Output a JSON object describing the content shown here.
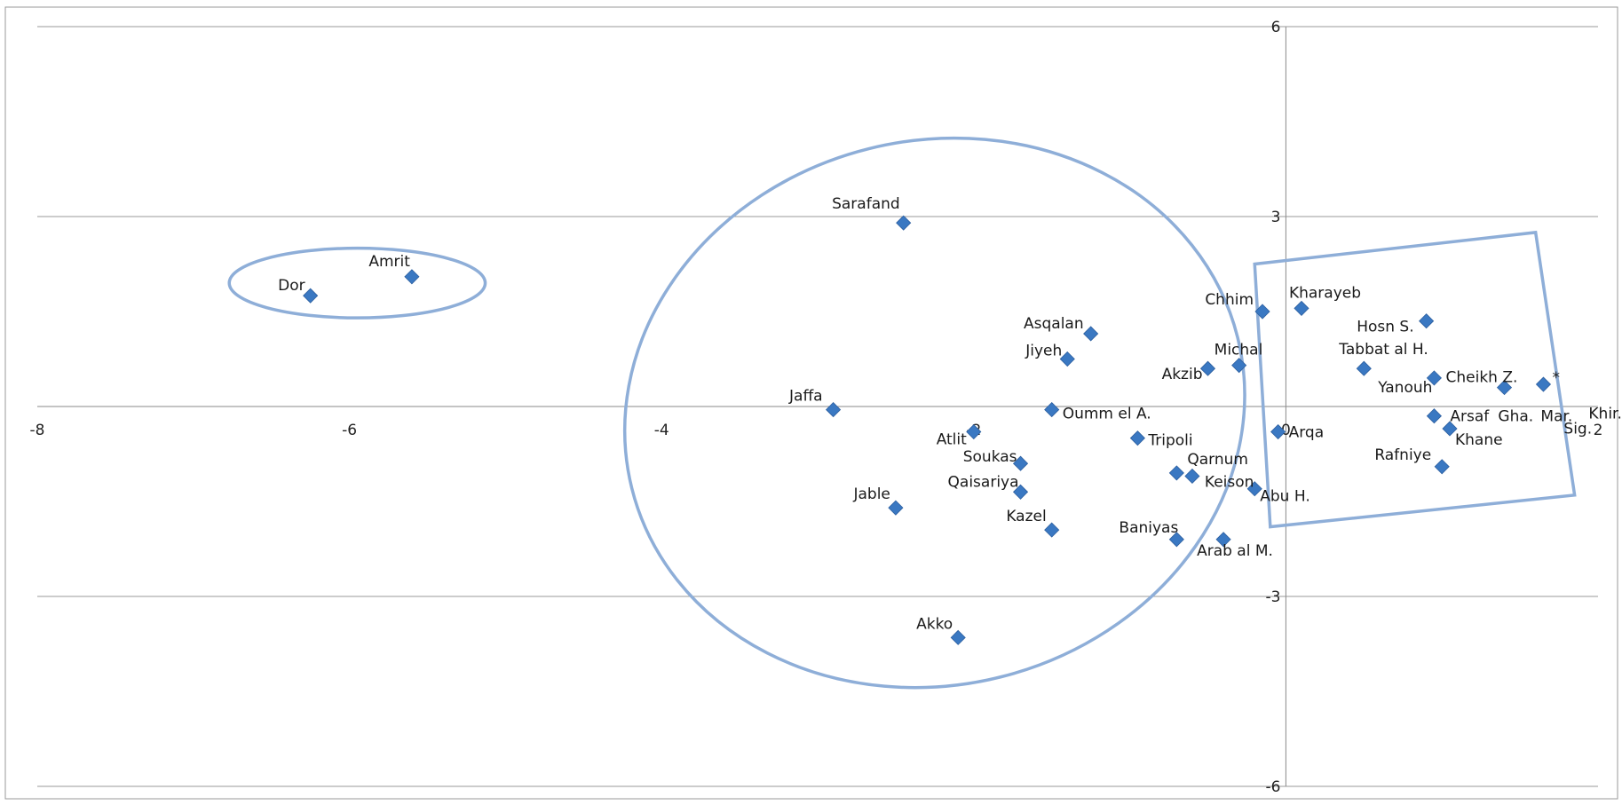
{
  "chart_data": {
    "type": "scatter",
    "xlim": [
      -8,
      2
    ],
    "ylim": [
      -6,
      6
    ],
    "x_ticks": [
      -8,
      -6,
      -4,
      -2,
      0,
      2
    ],
    "y_ticks": [
      -6,
      -3,
      3,
      6
    ],
    "grid": "horizontal",
    "marker_color": "#3a78c2",
    "shape_color": "#8eaed8",
    "points": [
      {
        "label": "Dor",
        "x": -6.25,
        "y": 1.75
      },
      {
        "label": "Amrit",
        "x": -5.6,
        "y": 2.05
      },
      {
        "label": "Sarafand",
        "x": -2.45,
        "y": 2.9
      },
      {
        "label": "Asqalan",
        "x": -1.25,
        "y": 1.15
      },
      {
        "label": "Jiyeh",
        "x": -1.4,
        "y": 0.75
      },
      {
        "label": "Jaffa",
        "x": -2.9,
        "y": -0.05
      },
      {
        "label": "Atlit",
        "x": -2.0,
        "y": -0.4
      },
      {
        "label": "Oumm el A.",
        "x": -1.5,
        "y": -0.05
      },
      {
        "label": "Tripoli",
        "x": -0.95,
        "y": -0.5
      },
      {
        "label": "Soukas",
        "x": -1.7,
        "y": -0.9
      },
      {
        "label": "Qaisariya",
        "x": -1.7,
        "y": -1.35
      },
      {
        "label": "Jable",
        "x": -2.5,
        "y": -1.6
      },
      {
        "label": "Kazel",
        "x": -1.5,
        "y": -1.95
      },
      {
        "label": "Baniyas",
        "x": -0.7,
        "y": -2.1
      },
      {
        "label": "Arab al M.",
        "x": -0.4,
        "y": -2.1
      },
      {
        "label": "Akko",
        "x": -2.1,
        "y": -3.65
      },
      {
        "label": "Qarnum",
        "x": -0.7,
        "y": -1.05
      },
      {
        "label": "Keison",
        "x": -0.6,
        "y": -1.1
      },
      {
        "label": "Abu H.",
        "x": -0.2,
        "y": -1.3
      },
      {
        "label": "Akzib",
        "x": -0.5,
        "y": 0.6
      },
      {
        "label": "Michal",
        "x": -0.3,
        "y": 0.65
      },
      {
        "label": "Chhim",
        "x": -0.15,
        "y": 1.5
      },
      {
        "label": "Kharayeb",
        "x": 0.1,
        "y": 1.55
      },
      {
        "label": "Arqa",
        "x": -0.05,
        "y": -0.4
      },
      {
        "label": "Hosn S.",
        "x": 0.9,
        "y": 1.35
      },
      {
        "label": "Tabbat al H.",
        "x": 0.5,
        "y": 0.6
      },
      {
        "label": "Yanouh",
        "x": 0.95,
        "y": 0.45
      },
      {
        "label": "Cheikh Z.",
        "x": 1.4,
        "y": 0.3
      },
      {
        "label": "*",
        "x": 1.65,
        "y": 0.35
      },
      {
        "label": "Arsaf",
        "x": 0.95,
        "y": -0.15
      },
      {
        "label": "Khane",
        "x": 1.05,
        "y": -0.35
      },
      {
        "label": "Rafniye",
        "x": 1.0,
        "y": -0.95
      }
    ],
    "annotations": [
      "Gha.",
      "Mar.",
      "Khir.",
      "Sig."
    ],
    "shapes": [
      {
        "type": "ellipse",
        "cx": -5.95,
        "cy": 1.95,
        "rx": 0.82,
        "ry": 0.55,
        "rot": 0
      },
      {
        "type": "ellipse",
        "cx": -2.25,
        "cy": -0.1,
        "rx": 2.0,
        "ry": 4.3,
        "rot": -14
      },
      {
        "type": "polygon",
        "points": [
          [
            -0.2,
            2.25
          ],
          [
            1.6,
            2.75
          ],
          [
            1.85,
            -1.4
          ],
          [
            -0.1,
            -1.9
          ]
        ]
      }
    ]
  }
}
